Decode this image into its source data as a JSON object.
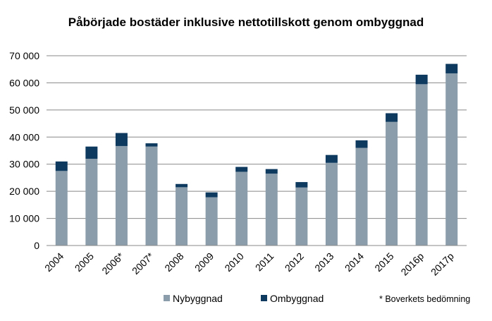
{
  "chart_data": {
    "type": "bar",
    "stacked": true,
    "title": "Påbörjade bostäder inklusive nettotillskott genom ombyggnad",
    "categories": [
      "2004",
      "2005",
      "2006*",
      "2007*",
      "2008",
      "2009",
      "2010",
      "2011",
      "2012",
      "2013",
      "2014",
      "2015",
      "2016p",
      "2017p"
    ],
    "series": [
      {
        "name": "Nybyggnad",
        "color": "#8b9dab",
        "values": [
          27500,
          32000,
          36700,
          36500,
          21500,
          17800,
          27200,
          26500,
          21400,
          30500,
          36000,
          45600,
          59500,
          63500
        ]
      },
      {
        "name": "Ombyggnad",
        "color": "#0f3a5f",
        "values": [
          3500,
          4500,
          4800,
          1200,
          1200,
          1800,
          1800,
          1700,
          2000,
          2900,
          2800,
          3200,
          3500,
          3500
        ]
      }
    ],
    "ylim": [
      0,
      70000
    ],
    "yticks": [
      "0",
      "10 000",
      "20 000",
      "30 000",
      "40 000",
      "50 000",
      "60 000",
      "70 000"
    ],
    "grid": "horizontal",
    "legend_position": "bottom",
    "note": "* Boverkets bedömning"
  }
}
